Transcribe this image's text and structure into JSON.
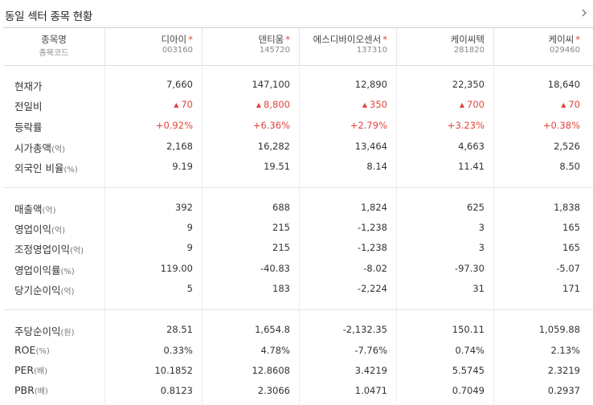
{
  "title": "동일 섹터 종목 현황",
  "header_left": {
    "name": "종목명",
    "code": "종목코드"
  },
  "companies": [
    {
      "name": "디아이",
      "code": "003160",
      "star": "*"
    },
    {
      "name": "덴티움",
      "code": "145720",
      "star": "*"
    },
    {
      "name": "에스디바이오센서",
      "code": "137310",
      "star": "*"
    },
    {
      "name": "케이씨텍",
      "code": "281820",
      "star": ""
    },
    {
      "name": "케이씨",
      "code": "029460",
      "star": "*"
    }
  ],
  "rows": [
    {
      "label": "현재가",
      "unit": "",
      "values": [
        "7,660",
        "147,100",
        "12,890",
        "22,350",
        "18,640"
      ],
      "up": false
    },
    {
      "label": "전일비",
      "unit": "",
      "values": [
        "70",
        "8,800",
        "350",
        "700",
        "70"
      ],
      "up": true,
      "arrow": "▲"
    },
    {
      "label": "등락률",
      "unit": "",
      "values": [
        "+0.92%",
        "+6.36%",
        "+2.79%",
        "+3.23%",
        "+0.38%"
      ],
      "up": true
    },
    {
      "label": "시가총액",
      "unit": "(억)",
      "values": [
        "2,168",
        "16,282",
        "13,464",
        "4,663",
        "2,526"
      ],
      "up": false
    },
    {
      "label": "외국인 비율",
      "unit": "(%)",
      "values": [
        "9.19",
        "19.51",
        "8.14",
        "11.41",
        "8.50"
      ],
      "up": false
    },
    {
      "label": "매출액",
      "unit": "(억)",
      "values": [
        "392",
        "688",
        "1,824",
        "625",
        "1,838"
      ],
      "up": false
    },
    {
      "label": "영업이익",
      "unit": "(억)",
      "values": [
        "9",
        "215",
        "-1,238",
        "3",
        "165"
      ],
      "up": false
    },
    {
      "label": "조정영업이익",
      "unit": "(억)",
      "values": [
        "9",
        "215",
        "-1,238",
        "3",
        "165"
      ],
      "up": false
    },
    {
      "label": "영업이익률",
      "unit": "(%)",
      "values": [
        "119.00",
        "-40.83",
        "-8.02",
        "-97.30",
        "-5.07"
      ],
      "up": false
    },
    {
      "label": "당기순이익",
      "unit": "(억)",
      "values": [
        "5",
        "183",
        "-2,224",
        "31",
        "171"
      ],
      "up": false
    },
    {
      "label": "주당순이익",
      "unit": "(원)",
      "values": [
        "28.51",
        "1,654.8",
        "-2,132.35",
        "150.11",
        "1,059.88"
      ],
      "up": false
    },
    {
      "label": "ROE",
      "unit": "(%)",
      "values": [
        "0.33%",
        "4.78%",
        "-7.76%",
        "0.74%",
        "2.13%"
      ],
      "up": false
    },
    {
      "label": "PER",
      "unit": "(배)",
      "values": [
        "10.1852",
        "12.8608",
        "3.4219",
        "5.5745",
        "2.3219"
      ],
      "up": false
    },
    {
      "label": "PBR",
      "unit": "(배)",
      "values": [
        "0.8123",
        "2.3066",
        "1.0471",
        "0.7049",
        "0.2937"
      ],
      "up": false
    }
  ],
  "colors": {
    "up": "#e0433b",
    "text": "#333333",
    "border": "#cfcfcf"
  },
  "icons": {
    "more": "chevron-right-icon"
  }
}
